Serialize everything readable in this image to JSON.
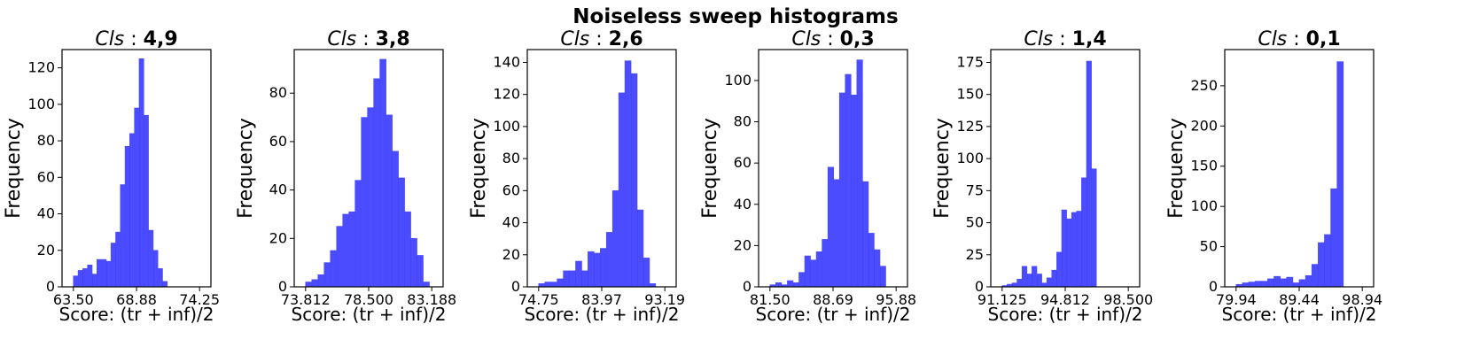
{
  "title": "Noiseless sweep histograms",
  "colors": {
    "bar": "#0000ff",
    "bar_opacity": 0.7
  },
  "chart_data": [
    {
      "type": "bar",
      "title_prefix": "Cls",
      "title_sep": " : ",
      "title_values": "4,9",
      "xlabel": "Score: (tr + inf)/2",
      "ylabel": "Frequency",
      "xlim": [
        63.5,
        74.25
      ],
      "ylim": [
        0,
        130
      ],
      "xticks": [
        63.5,
        68.88,
        74.25
      ],
      "xtick_labels": [
        "63.50",
        "68.88",
        "74.25"
      ],
      "yticks": [
        0,
        20,
        40,
        60,
        80,
        100,
        120
      ],
      "bin_start": 63.5,
      "bin_width": 0.4,
      "counts": [
        6,
        9,
        10,
        12,
        7,
        15,
        15,
        14,
        24,
        30,
        56,
        77,
        84,
        98,
        125,
        94,
        31,
        20,
        10,
        3
      ]
    },
    {
      "type": "bar",
      "title_prefix": "Cls",
      "title_sep": " : ",
      "title_values": "3,8",
      "xlabel": "Score: (tr + inf)/2",
      "ylabel": "Frequency",
      "xlim": [
        73.812,
        83.188
      ],
      "ylim": [
        0,
        98
      ],
      "xticks": [
        73.812,
        78.5,
        83.188
      ],
      "xtick_labels": [
        "73.812",
        "78.500",
        "83.188"
      ],
      "yticks": [
        0,
        20,
        40,
        60,
        80
      ],
      "bin_start": 73.812,
      "bin_width": 0.46,
      "counts": [
        2,
        3,
        5,
        10,
        15,
        25,
        30,
        31,
        44,
        70,
        74,
        86,
        94,
        71,
        56,
        45,
        31,
        20,
        13,
        2
      ]
    },
    {
      "type": "bar",
      "title_prefix": "Cls",
      "title_sep": " : ",
      "title_values": "2,6",
      "xlabel": "Score: (tr + inf)/2",
      "ylabel": "Frequency",
      "xlim": [
        74.75,
        93.19
      ],
      "ylim": [
        0,
        148
      ],
      "xticks": [
        74.75,
        83.97,
        93.19
      ],
      "xtick_labels": [
        "74.75",
        "83.97",
        "93.19"
      ],
      "yticks": [
        0,
        20,
        40,
        60,
        80,
        100,
        120,
        140
      ],
      "bin_start": 74.75,
      "bin_width": 0.9,
      "counts": [
        2,
        3,
        3,
        5,
        10,
        10,
        16,
        10,
        22,
        21,
        24,
        34,
        60,
        121,
        141,
        133,
        48,
        18,
        2
      ]
    },
    {
      "type": "bar",
      "title_prefix": "Cls",
      "title_sep": " : ",
      "title_values": "0,3",
      "xlabel": "Score: (tr + inf)/2",
      "ylabel": "Frequency",
      "xlim": [
        81.5,
        95.88
      ],
      "ylim": [
        0,
        115
      ],
      "xticks": [
        81.5,
        88.69,
        95.88
      ],
      "xtick_labels": [
        "81.50",
        "88.69",
        "95.88"
      ],
      "yticks": [
        0,
        20,
        40,
        60,
        80,
        100
      ],
      "bin_start": 81.5,
      "bin_width": 0.66,
      "counts": [
        1,
        2,
        1,
        3,
        2,
        7,
        15,
        13,
        17,
        23,
        58,
        52,
        94,
        103,
        93,
        110,
        51,
        26,
        18,
        10
      ]
    },
    {
      "type": "bar",
      "title_prefix": "Cls",
      "title_sep": " : ",
      "title_values": "1,4",
      "xlabel": "Score: (tr + inf)/2",
      "ylabel": "Frequency",
      "xlim": [
        91.125,
        98.5
      ],
      "ylim": [
        0,
        185
      ],
      "xticks": [
        91.125,
        94.812,
        98.5
      ],
      "xtick_labels": [
        "91.125",
        "94.812",
        "98.500"
      ],
      "yticks": [
        0,
        25,
        50,
        75,
        100,
        125,
        150,
        175
      ],
      "bin_start": 91.125,
      "bin_width": 0.29,
      "counts": [
        1,
        2,
        3,
        6,
        16,
        10,
        16,
        10,
        3,
        7,
        13,
        27,
        60,
        53,
        58,
        59,
        85,
        176,
        92
      ]
    },
    {
      "type": "bar",
      "title_prefix": "Cls",
      "title_sep": " : ",
      "title_values": "0,1",
      "xlabel": "Score: (tr + inf)/2",
      "ylabel": "Frequency",
      "xlim": [
        79.94,
        98.94
      ],
      "ylim": [
        0,
        295
      ],
      "xticks": [
        79.94,
        89.44,
        98.94
      ],
      "xtick_labels": [
        "79.94",
        "89.44",
        "98.94"
      ],
      "yticks": [
        0,
        50,
        100,
        150,
        200,
        250
      ],
      "bin_start": 79.94,
      "bin_width": 0.95,
      "counts": [
        3,
        5,
        6,
        7,
        7,
        10,
        13,
        10,
        12,
        5,
        9,
        14,
        28,
        55,
        65,
        122,
        280
      ]
    }
  ]
}
